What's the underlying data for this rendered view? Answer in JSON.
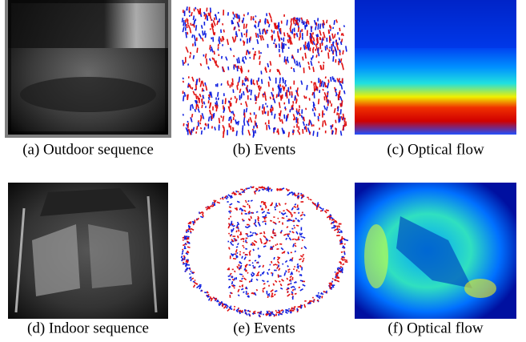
{
  "figure": {
    "panels": [
      {
        "caption": "(a) Outdoor sequence"
      },
      {
        "caption": "(b) Events"
      },
      {
        "caption": "(c) Optical flow"
      },
      {
        "caption": "(d) Indoor sequence"
      },
      {
        "caption": "(e) Events"
      },
      {
        "caption": "(f) Optical flow"
      }
    ]
  }
}
